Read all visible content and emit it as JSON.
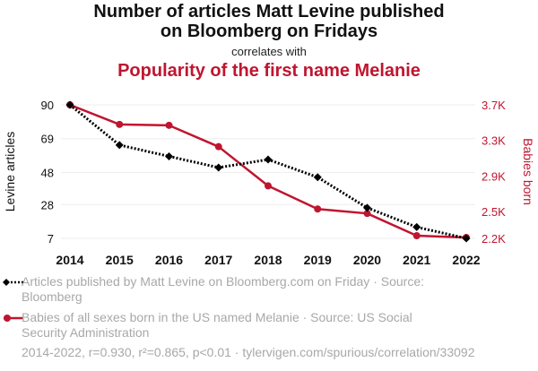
{
  "header": {
    "title_line1": "Number of articles Matt Levine published",
    "title_line2": "on Bloomberg on Fridays",
    "subtitle": "correlates with",
    "title2": "Popularity of the first name Melanie"
  },
  "legend": {
    "series1": "Articles published by Matt Levine on Bloomberg.com on Friday · Source: Bloomberg",
    "series2": "Babies of all sexes born in the US named Melanie · Source: US Social Security Administration"
  },
  "footer": "2014-2022, r=0.930, r²=0.865, p<0.01 · tylervigen.com/spurious/correlation/33092",
  "colors": {
    "left_series": "#000000",
    "right_series": "#c0152f",
    "grid": "#eeeeee",
    "muted": "#a8a8a8"
  },
  "chart_data": {
    "type": "line",
    "x": [
      2014,
      2015,
      2016,
      2017,
      2018,
      2019,
      2020,
      2021,
      2022
    ],
    "xlabel": "",
    "left_axis": {
      "label": "Levine articles",
      "range": [
        7,
        90
      ],
      "ticks": [
        7,
        28,
        48,
        69,
        90
      ],
      "tick_labels": [
        "7",
        "28",
        "48",
        "69",
        "90"
      ]
    },
    "right_axis": {
      "label": "Babies born",
      "range": [
        2200,
        3700
      ],
      "ticks": [
        2200,
        2500,
        2900,
        3300,
        3700
      ],
      "tick_labels": [
        "2.2K",
        "2.5K",
        "2.9K",
        "3.3K",
        "3.7K"
      ]
    },
    "series": [
      {
        "name": "Articles published by Matt Levine on Bloomberg.com on Friday",
        "axis": "left",
        "style": "dotted",
        "marker": "diamond",
        "values": [
          90,
          65,
          58,
          51,
          56,
          45,
          26,
          14,
          7
        ]
      },
      {
        "name": "Babies of all sexes born in the US named Melanie",
        "axis": "right",
        "style": "solid",
        "marker": "circle",
        "values": [
          3700,
          3480,
          3470,
          3230,
          2790,
          2530,
          2480,
          2230,
          2210
        ]
      }
    ]
  }
}
